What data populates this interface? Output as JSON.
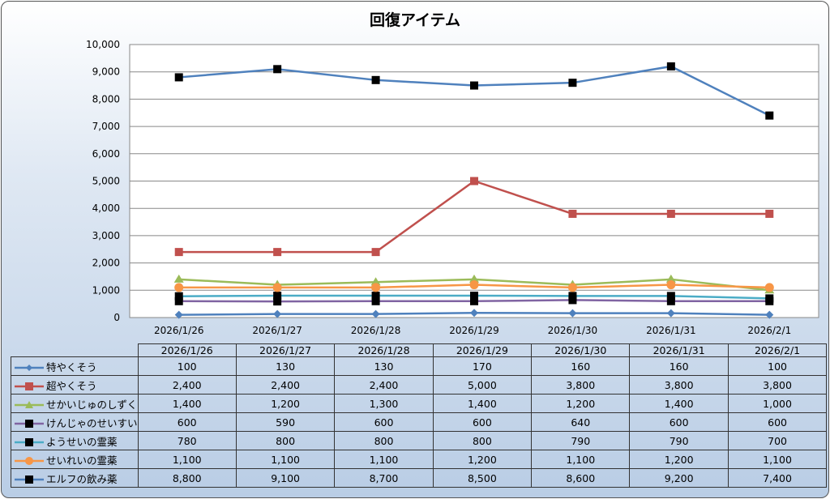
{
  "chart_data": {
    "type": "line",
    "title": "回復アイテム",
    "categories": [
      "2026/1/26",
      "2026/1/27",
      "2026/1/28",
      "2026/1/29",
      "2026/1/30",
      "2026/1/31",
      "2026/2/1"
    ],
    "ylim": [
      0,
      10000
    ],
    "yticks": [
      "0",
      "1,000",
      "2,000",
      "3,000",
      "4,000",
      "5,000",
      "6,000",
      "7,000",
      "8,000",
      "9,000",
      "10,000"
    ],
    "grid": true,
    "legend": "data-table",
    "series": [
      {
        "name": "特やくそう",
        "color": "#4f81bd",
        "marker": "diamond",
        "values": [
          100,
          130,
          130,
          170,
          160,
          160,
          100
        ],
        "labels": [
          "100",
          "130",
          "130",
          "170",
          "160",
          "160",
          "100"
        ]
      },
      {
        "name": "超やくそう",
        "color": "#c0504d",
        "marker": "square",
        "values": [
          2400,
          2400,
          2400,
          5000,
          3800,
          3800,
          3800
        ],
        "labels": [
          "2,400",
          "2,400",
          "2,400",
          "5,000",
          "3,800",
          "3,800",
          "3,800"
        ]
      },
      {
        "name": "せかいじゅのしずく",
        "color": "#9bbb59",
        "marker": "triangle",
        "values": [
          1400,
          1200,
          1300,
          1400,
          1200,
          1400,
          1000
        ],
        "labels": [
          "1,400",
          "1,200",
          "1,300",
          "1,400",
          "1,200",
          "1,400",
          "1,000"
        ]
      },
      {
        "name": "けんじゃのせいすい",
        "color": "#8064a2",
        "marker": "blacksquare",
        "values": [
          600,
          590,
          600,
          600,
          640,
          600,
          600
        ],
        "labels": [
          "600",
          "590",
          "600",
          "600",
          "640",
          "600",
          "600"
        ]
      },
      {
        "name": "ようせいの霊薬",
        "color": "#4bacc6",
        "marker": "blacksquare",
        "values": [
          780,
          800,
          800,
          800,
          790,
          790,
          700
        ],
        "labels": [
          "780",
          "800",
          "800",
          "800",
          "790",
          "790",
          "700"
        ]
      },
      {
        "name": "せいれいの霊薬",
        "color": "#f79646",
        "marker": "circle",
        "values": [
          1100,
          1100,
          1100,
          1200,
          1100,
          1200,
          1100
        ],
        "labels": [
          "1,100",
          "1,100",
          "1,100",
          "1,200",
          "1,100",
          "1,200",
          "1,100"
        ]
      },
      {
        "name": "エルフの飲み薬",
        "color": "#4f81bd",
        "marker": "blacksquare",
        "values": [
          8800,
          9100,
          8700,
          8500,
          8600,
          9200,
          7400
        ],
        "labels": [
          "8,800",
          "9,100",
          "8,700",
          "8,500",
          "8,600",
          "9,200",
          "7,400"
        ]
      }
    ]
  }
}
